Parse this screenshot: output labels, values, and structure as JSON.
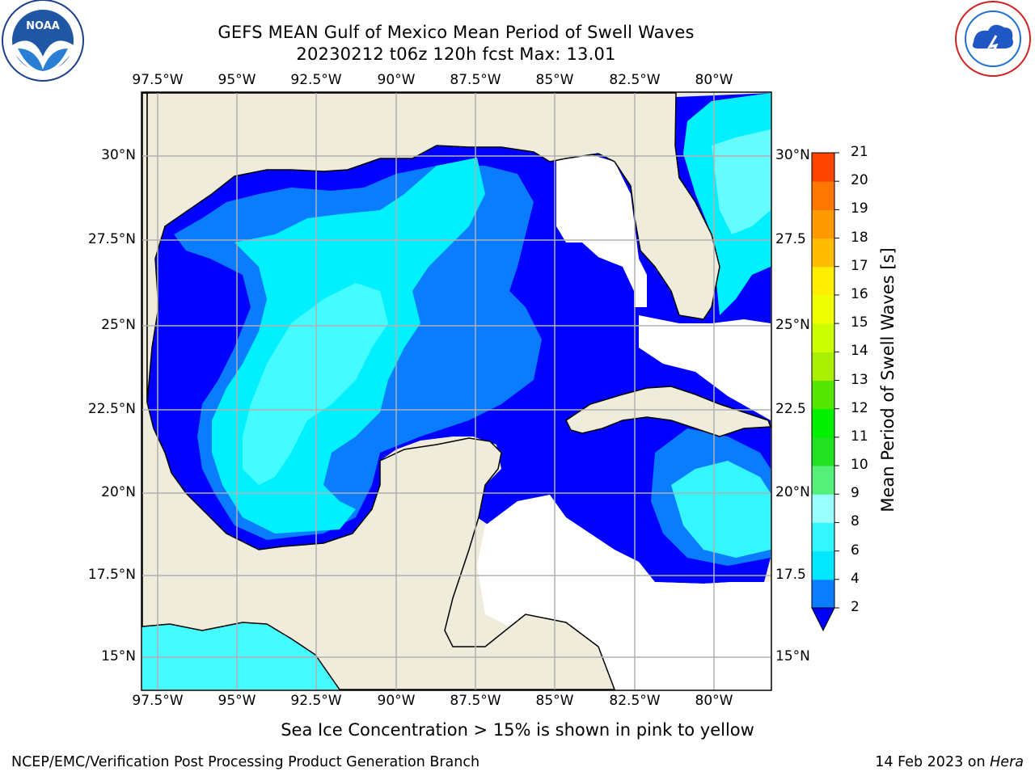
{
  "title": {
    "line1": "GEFS MEAN Gulf of Mexico Mean Period of Swell Waves",
    "line2": "20230212 t06z 120h fcst   Max: 13.01"
  },
  "logos": {
    "left_text": "NOAA",
    "left_ring_text": "NATIONAL OCEANIC AND ATMOSPHERIC ADMINISTRATION · U.S. DEPARTMENT OF COMMERCE",
    "right_ring_text": "NATIONAL WEATHER SERVICE"
  },
  "map": {
    "lon_ticks": [
      "97.5°W",
      "95°W",
      "92.5°W",
      "90°W",
      "87.5°W",
      "85°W",
      "82.5°W",
      "80°W"
    ],
    "lat_ticks_left": [
      "30°N",
      "27.5°N",
      "25°N",
      "22.5°N",
      "20°N",
      "17.5°N",
      "15°N"
    ],
    "lat_ticks_right": [
      "30°N",
      "27.5",
      "25°N",
      "22.5",
      "20°N",
      "17.5",
      "15°N"
    ],
    "colors": {
      "land": "#efecdc",
      "ocean_missing": "#ffffff",
      "grid": "#b0b0b0"
    }
  },
  "colorbar": {
    "label": "Mean Period of Swell Waves [s]",
    "ticks": [
      "2",
      "4",
      "6",
      "8",
      "9",
      "10",
      "11",
      "12",
      "13",
      "14",
      "15",
      "16",
      "17",
      "18",
      "19",
      "20",
      "21"
    ],
    "colors": [
      "#0000ff",
      "#0a7cff",
      "#00e8ff",
      "#33f6ff",
      "#99ffff",
      "#55f07a",
      "#22e022",
      "#00f000",
      "#55e600",
      "#aaee00",
      "#ccff00",
      "#eeff00",
      "#ffee00",
      "#ffbb00",
      "#ff9900",
      "#ff7700",
      "#ff4400",
      "#ff0000"
    ]
  },
  "footer": {
    "note": "Sea Ice Concentration > 15% is shown in pink to yellow",
    "left": "NCEP/EMC/Verification Post Processing Product Generation Branch",
    "right_prefix": "14 Feb 2023 on ",
    "right_host": "Hera"
  }
}
